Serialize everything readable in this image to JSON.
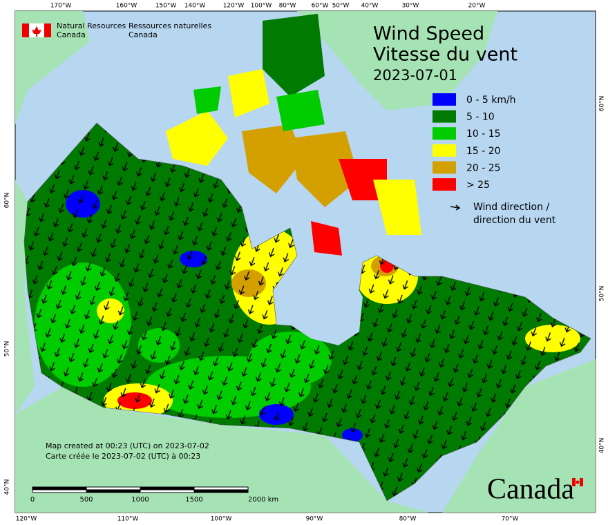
{
  "header": {
    "agency_en": [
      "Natural Resources",
      "Canada"
    ],
    "agency_fr": [
      "Ressources naturelles",
      "Canada"
    ]
  },
  "title": {
    "en": "Wind Speed",
    "fr": "Vitesse du vent",
    "date": "2023-07-01"
  },
  "legend": {
    "items": [
      {
        "label": "0 - 5 km/h",
        "color": "#0000ff"
      },
      {
        "label": "5 - 10",
        "color": "#007a00"
      },
      {
        "label": "10 - 15",
        "color": "#00cc00"
      },
      {
        "label": "15 - 20",
        "color": "#ffff00"
      },
      {
        "label": "20 - 25",
        "color": "#d4a000"
      },
      {
        "label": "> 25",
        "color": "#ff0000"
      }
    ],
    "arrow_label": [
      "Wind direction /",
      "direction du vent"
    ]
  },
  "graticule": {
    "top": [
      "170°W",
      "160°W",
      "150°W",
      "140°W",
      "120°W",
      "100°W",
      "80°W",
      "60°W",
      "50°W",
      "40°W",
      "30°W",
      "20°W"
    ],
    "bottom": [
      "120°W",
      "110°W",
      "100°W",
      "90°W",
      "80°W",
      "70°W"
    ],
    "left": [
      "60°N",
      "50°N",
      "40°N"
    ],
    "right": [
      "60°N",
      "50°N",
      "40°N"
    ]
  },
  "note": [
    "Map created at 00:23 (UTC) on 2023-07-02",
    "Carte créée le 2023-07-02 (UTC) à 00:23"
  ],
  "scale": {
    "labels": [
      "0",
      "500",
      "1000",
      "1500",
      "2000 km"
    ]
  },
  "wordmark": "Canada"
}
